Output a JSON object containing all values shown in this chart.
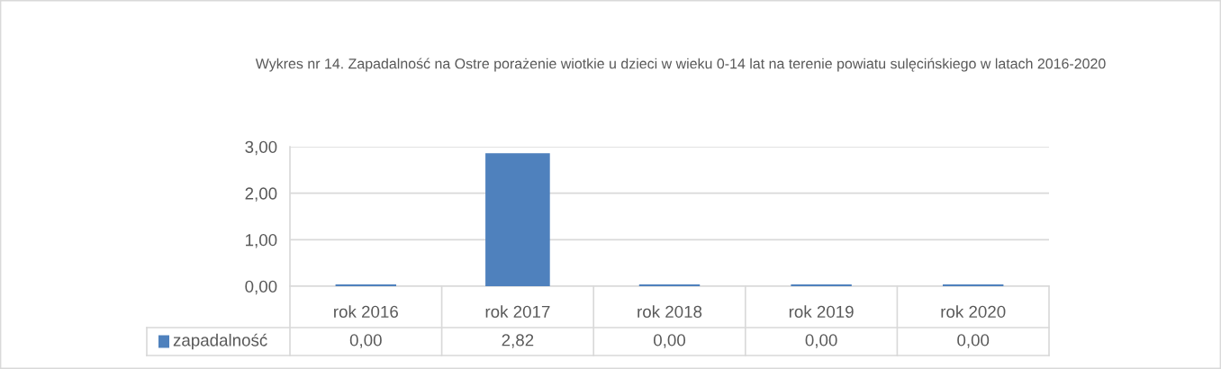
{
  "chart_data": {
    "type": "bar",
    "title": "Wykres nr 14. Zapadalność na Ostre porażenie wiotkie u dzieci w wieku 0-14 lat na terenie powiatu sulęcińskiego w latach 2016-2020",
    "categories": [
      "rok 2016",
      "rok 2017",
      "rok 2018",
      "rok 2019",
      "rok 2020"
    ],
    "series": [
      {
        "name": "zapadalność",
        "color": "#4f81bd",
        "values": [
          0,
          2.82,
          0,
          0,
          0
        ],
        "value_labels": [
          "0,00",
          "2,82",
          "0,00",
          "0,00",
          "0,00"
        ]
      }
    ],
    "ylim": [
      0,
      3
    ],
    "yticks": [
      {
        "value": 0,
        "label": "0,00"
      },
      {
        "value": 1,
        "label": "1,00"
      },
      {
        "value": 2,
        "label": "2,00"
      },
      {
        "value": 3,
        "label": "3,00"
      }
    ],
    "grid": "y",
    "legend": "bottom left"
  }
}
